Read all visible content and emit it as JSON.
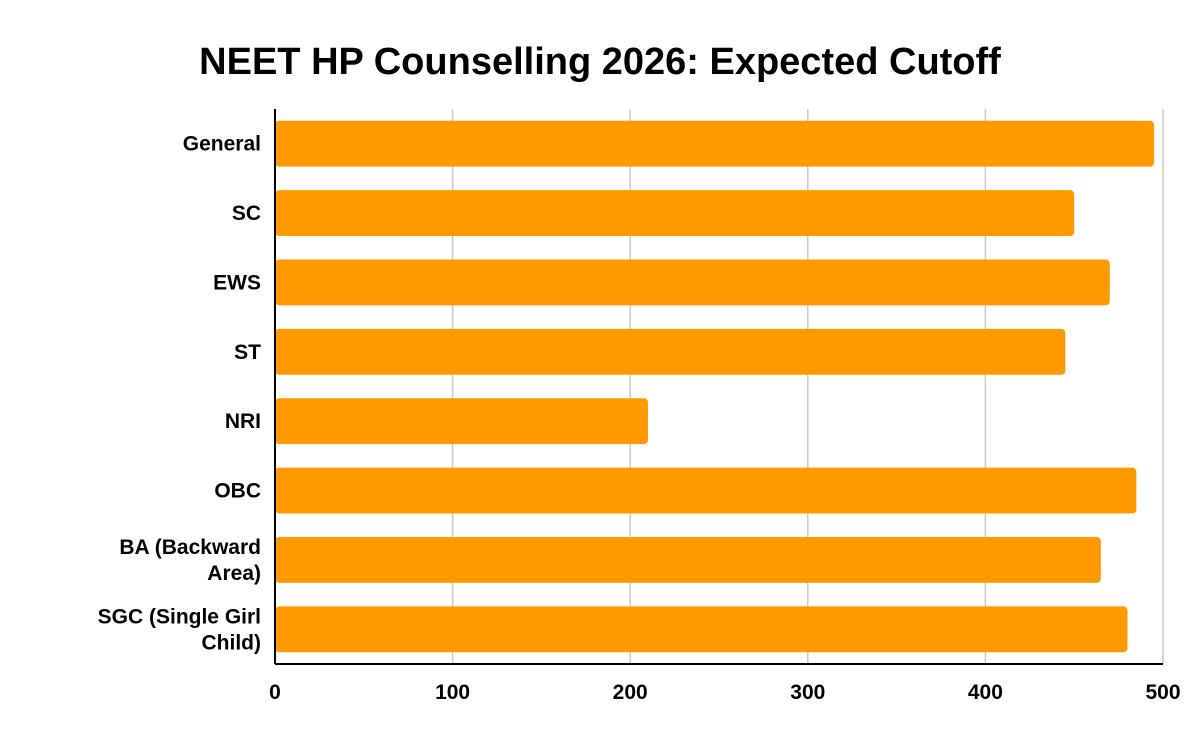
{
  "chart_data": {
    "type": "bar",
    "orientation": "horizontal",
    "title": "NEET HP Counselling 2026: Expected Cutoff",
    "xlabel": "",
    "ylabel": "",
    "categories": [
      [
        "General"
      ],
      [
        "SC"
      ],
      [
        "EWS"
      ],
      [
        "ST"
      ],
      [
        "NRI"
      ],
      [
        "OBC"
      ],
      [
        "BA (Backward",
        "Area)"
      ],
      [
        "SGC (Single Girl",
        "Child)"
      ]
    ],
    "values": [
      495,
      450,
      470,
      445,
      210,
      485,
      465,
      480
    ],
    "xlim": [
      0,
      500
    ],
    "xticks": [
      "0",
      "100",
      "200",
      "300",
      "400",
      "500"
    ],
    "grid": true,
    "legend": "none",
    "bar_color": "#ff9900",
    "grid_color": "#c8c8c8",
    "axis_color": "#000000"
  }
}
